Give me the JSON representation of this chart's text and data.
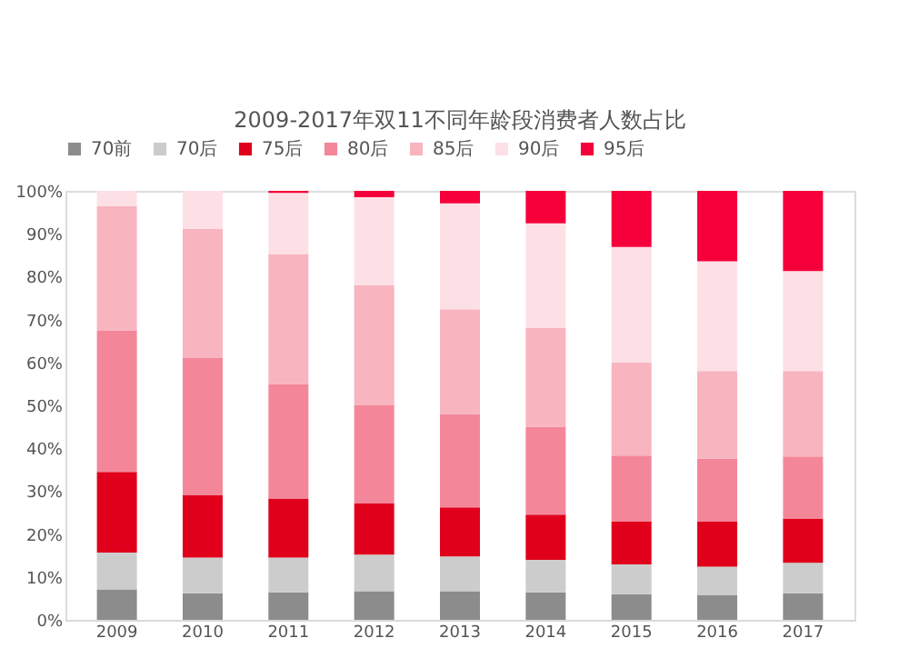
{
  "chart_data": {
    "type": "bar",
    "stacked": true,
    "title": "2009-2017年双11不同年龄段消费者人数占比",
    "categories": [
      "2009",
      "2010",
      "2011",
      "2012",
      "2013",
      "2014",
      "2015",
      "2016",
      "2017"
    ],
    "series": [
      {
        "name": "70前",
        "color": "#8c8c8c",
        "values": [
          7.1,
          6.2,
          6.4,
          6.7,
          6.7,
          6.4,
          6.0,
          5.7,
          6.2
        ]
      },
      {
        "name": "70后",
        "color": "#cccccc",
        "values": [
          8.6,
          8.3,
          8.1,
          8.5,
          8.1,
          7.6,
          6.9,
          6.7,
          7.1
        ]
      },
      {
        "name": "75后",
        "color": "#e0001b",
        "values": [
          18.8,
          14.5,
          13.8,
          11.9,
          11.4,
          10.5,
          10.0,
          10.5,
          10.3
        ]
      },
      {
        "name": "80后",
        "color": "#f4869a",
        "values": [
          33,
          32,
          26.7,
          22.9,
          21.8,
          20.5,
          15.4,
          14.7,
          14.5
        ]
      },
      {
        "name": "85后",
        "color": "#f8b4bf",
        "values": [
          28.9,
          30.1,
          30.3,
          28,
          24.4,
          23,
          21.7,
          20.4,
          19.9
        ]
      },
      {
        "name": "90后",
        "color": "#fde0e6",
        "values": [
          3.6,
          8.9,
          14.2,
          20.5,
          24.7,
          24.4,
          26.9,
          25.6,
          23.3
        ]
      },
      {
        "name": "95后",
        "color": "#f5003a",
        "values": [
          0,
          0,
          0.5,
          1.5,
          2.9,
          7.6,
          13.1,
          16.4,
          18.7
        ]
      }
    ],
    "ylim": [
      0,
      100
    ],
    "yticks": [
      {
        "value": 0,
        "label": "0%"
      },
      {
        "value": 10,
        "label": "10%"
      },
      {
        "value": 20,
        "label": "20%"
      },
      {
        "value": 30,
        "label": "30%"
      },
      {
        "value": 40,
        "label": "40%"
      },
      {
        "value": 50,
        "label": "50%"
      },
      {
        "value": 60,
        "label": "60%"
      },
      {
        "value": 70,
        "label": "70%"
      },
      {
        "value": 80,
        "label": "80%"
      },
      {
        "value": 90,
        "label": "90%"
      },
      {
        "value": 100,
        "label": "100%"
      }
    ],
    "grid": false,
    "legend": "top"
  }
}
